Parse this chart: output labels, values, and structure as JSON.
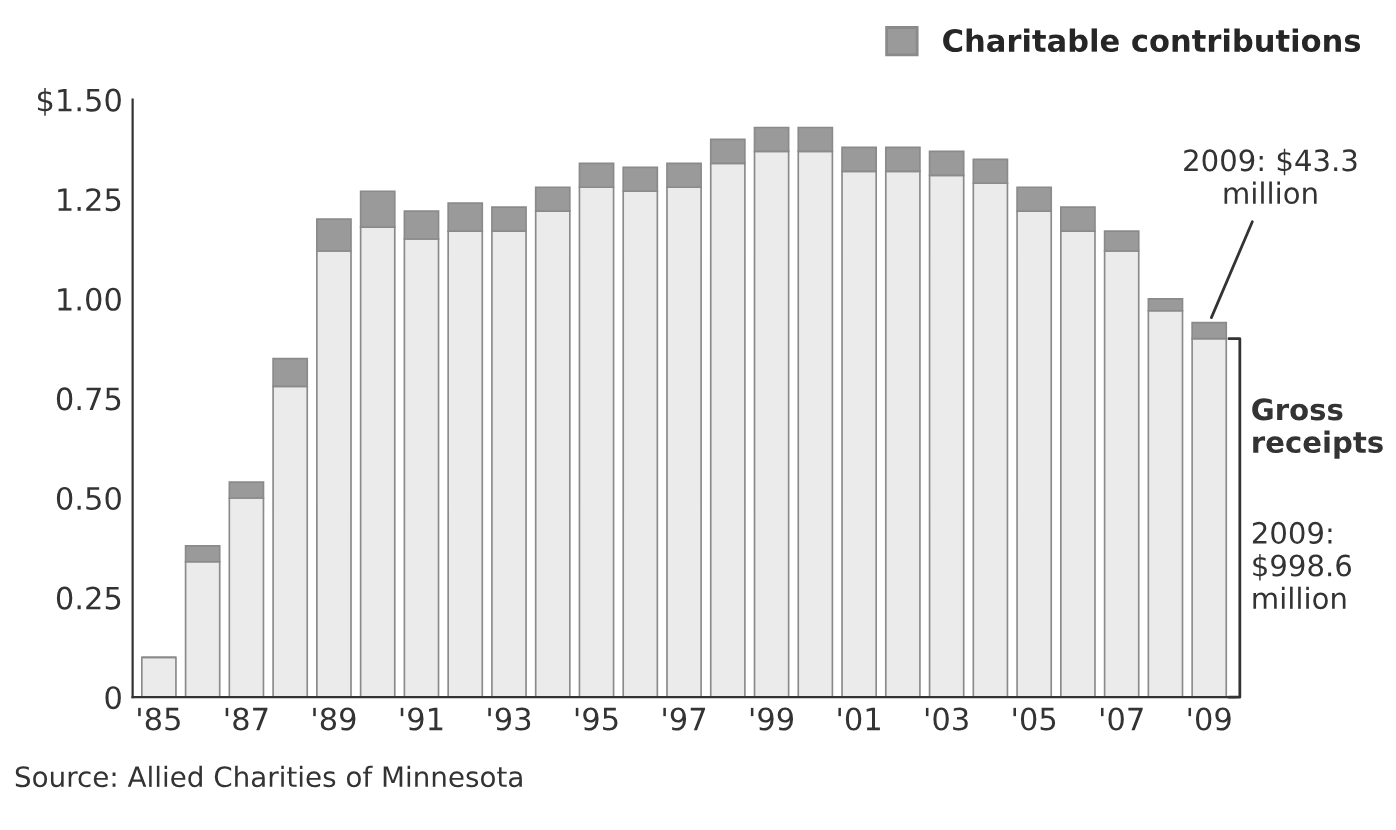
{
  "chart_data": {
    "type": "bar",
    "stacked": true,
    "categories": [
      "'85",
      null,
      "'87",
      null,
      "'89",
      null,
      "'91",
      null,
      "'93",
      null,
      "'95",
      null,
      "'97",
      null,
      "'99",
      null,
      "'01",
      null,
      "'03",
      null,
      "'05",
      null,
      "'07",
      null,
      "'09"
    ],
    "series": [
      {
        "name": "Gross receipts",
        "color": "#ebebeb",
        "values": [
          0.1,
          0.34,
          0.5,
          0.78,
          1.12,
          1.18,
          1.15,
          1.17,
          1.17,
          1.22,
          1.28,
          1.27,
          1.28,
          1.34,
          1.37,
          1.37,
          1.32,
          1.32,
          1.31,
          1.29,
          1.22,
          1.17,
          1.12,
          0.97,
          0.9
        ]
      },
      {
        "name": "Charitable contributions",
        "color": "#9a9a9a",
        "values": [
          0,
          0.04,
          0.04,
          0.07,
          0.08,
          0.09,
          0.07,
          0.07,
          0.06,
          0.06,
          0.06,
          0.06,
          0.06,
          0.06,
          0.06,
          0.06,
          0.06,
          0.06,
          0.06,
          0.06,
          0.06,
          0.06,
          0.05,
          0.03,
          0.04
        ]
      }
    ],
    "ylim": [
      0,
      1.5
    ],
    "yticks": [
      0,
      0.25,
      {
        "value": 0.5,
        "label": "0.50"
      },
      0.75,
      {
        "value": 1.0,
        "label": "1.00"
      },
      1.25,
      {
        "value": 1.5,
        "label": "$1.50"
      }
    ],
    "legend": "top right",
    "grid": false,
    "annotations": [
      {
        "text": "2009: $43.3 million",
        "x": "'09",
        "y": 0.94
      },
      "2009: $998.6 million",
      "Source: Allied Charities of Minnesota"
    ]
  }
}
